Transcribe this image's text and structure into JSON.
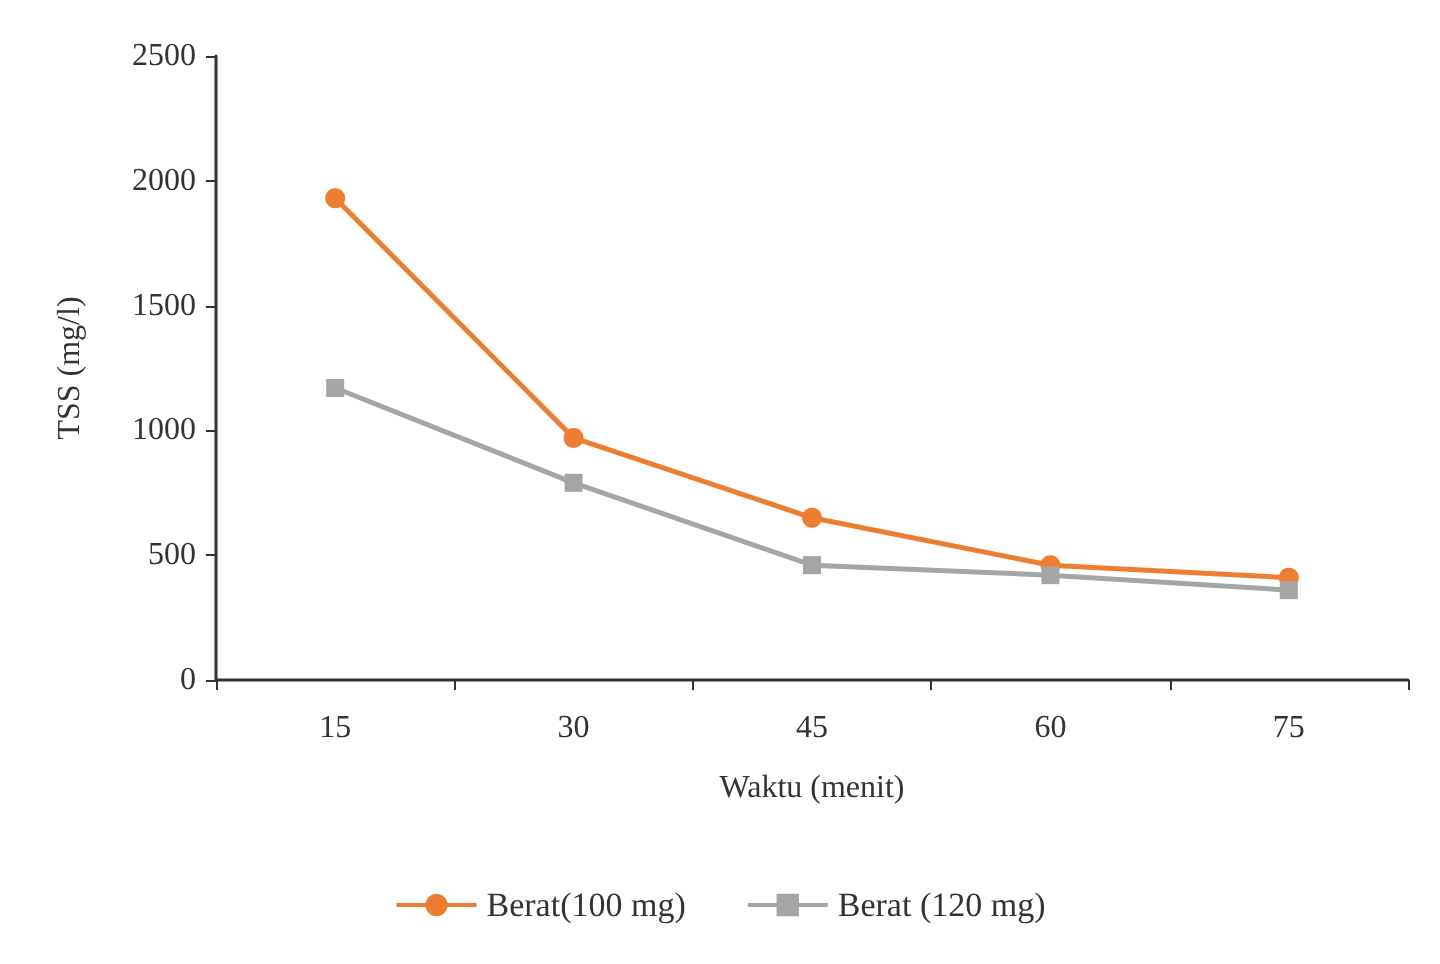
{
  "chart_data": {
    "type": "line",
    "xlabel": "Waktu (menit)",
    "ylabel": "TSS (mg/l)",
    "categories": [
      "15",
      "30",
      "45",
      "60",
      "75"
    ],
    "series": [
      {
        "name": "Berat(100 mg)",
        "color": "#ed7d31",
        "marker": "circle",
        "values": [
          1930,
          970,
          650,
          460,
          410
        ]
      },
      {
        "name": "Berat (120 mg)",
        "color": "#a5a5a5",
        "marker": "square",
        "values": [
          1170,
          790,
          460,
          420,
          360
        ]
      }
    ],
    "ylim": [
      0,
      2500
    ],
    "yticks": [
      0,
      500,
      1000,
      1500,
      2000,
      2500
    ],
    "grid": false,
    "legend": "bottom"
  }
}
